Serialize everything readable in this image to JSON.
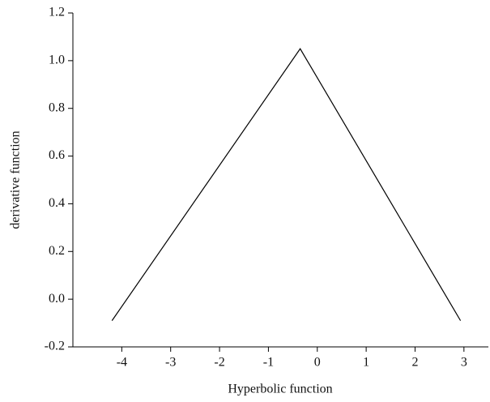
{
  "chart_data": {
    "type": "line",
    "x_label": "Hyperbolic function",
    "y_label": "derivative function",
    "x": [
      -4.2,
      -0.35,
      2.93
    ],
    "series": [
      {
        "name": null,
        "color": "#000000",
        "values": [
          -0.09,
          1.05,
          -0.09
        ]
      }
    ],
    "xlim": [
      -5,
      3.5
    ],
    "xticks": [
      -4,
      -3,
      -2,
      -1,
      0,
      1,
      2,
      3
    ],
    "ylim": [
      -0.2,
      1.2
    ],
    "yticks": [
      {
        "value": -0.2,
        "label": "-0.2"
      },
      {
        "value": 0,
        "label": "0.0"
      },
      {
        "value": 0.2,
        "label": "0.2"
      },
      {
        "value": 0.4,
        "label": "0.4"
      },
      {
        "value": 0.6,
        "label": "0.6"
      },
      {
        "value": 0.8,
        "label": "0.8"
      },
      {
        "value": 1.0,
        "label": "1.0"
      },
      {
        "value": 1.2,
        "label": "1.2"
      }
    ],
    "grid": false
  }
}
